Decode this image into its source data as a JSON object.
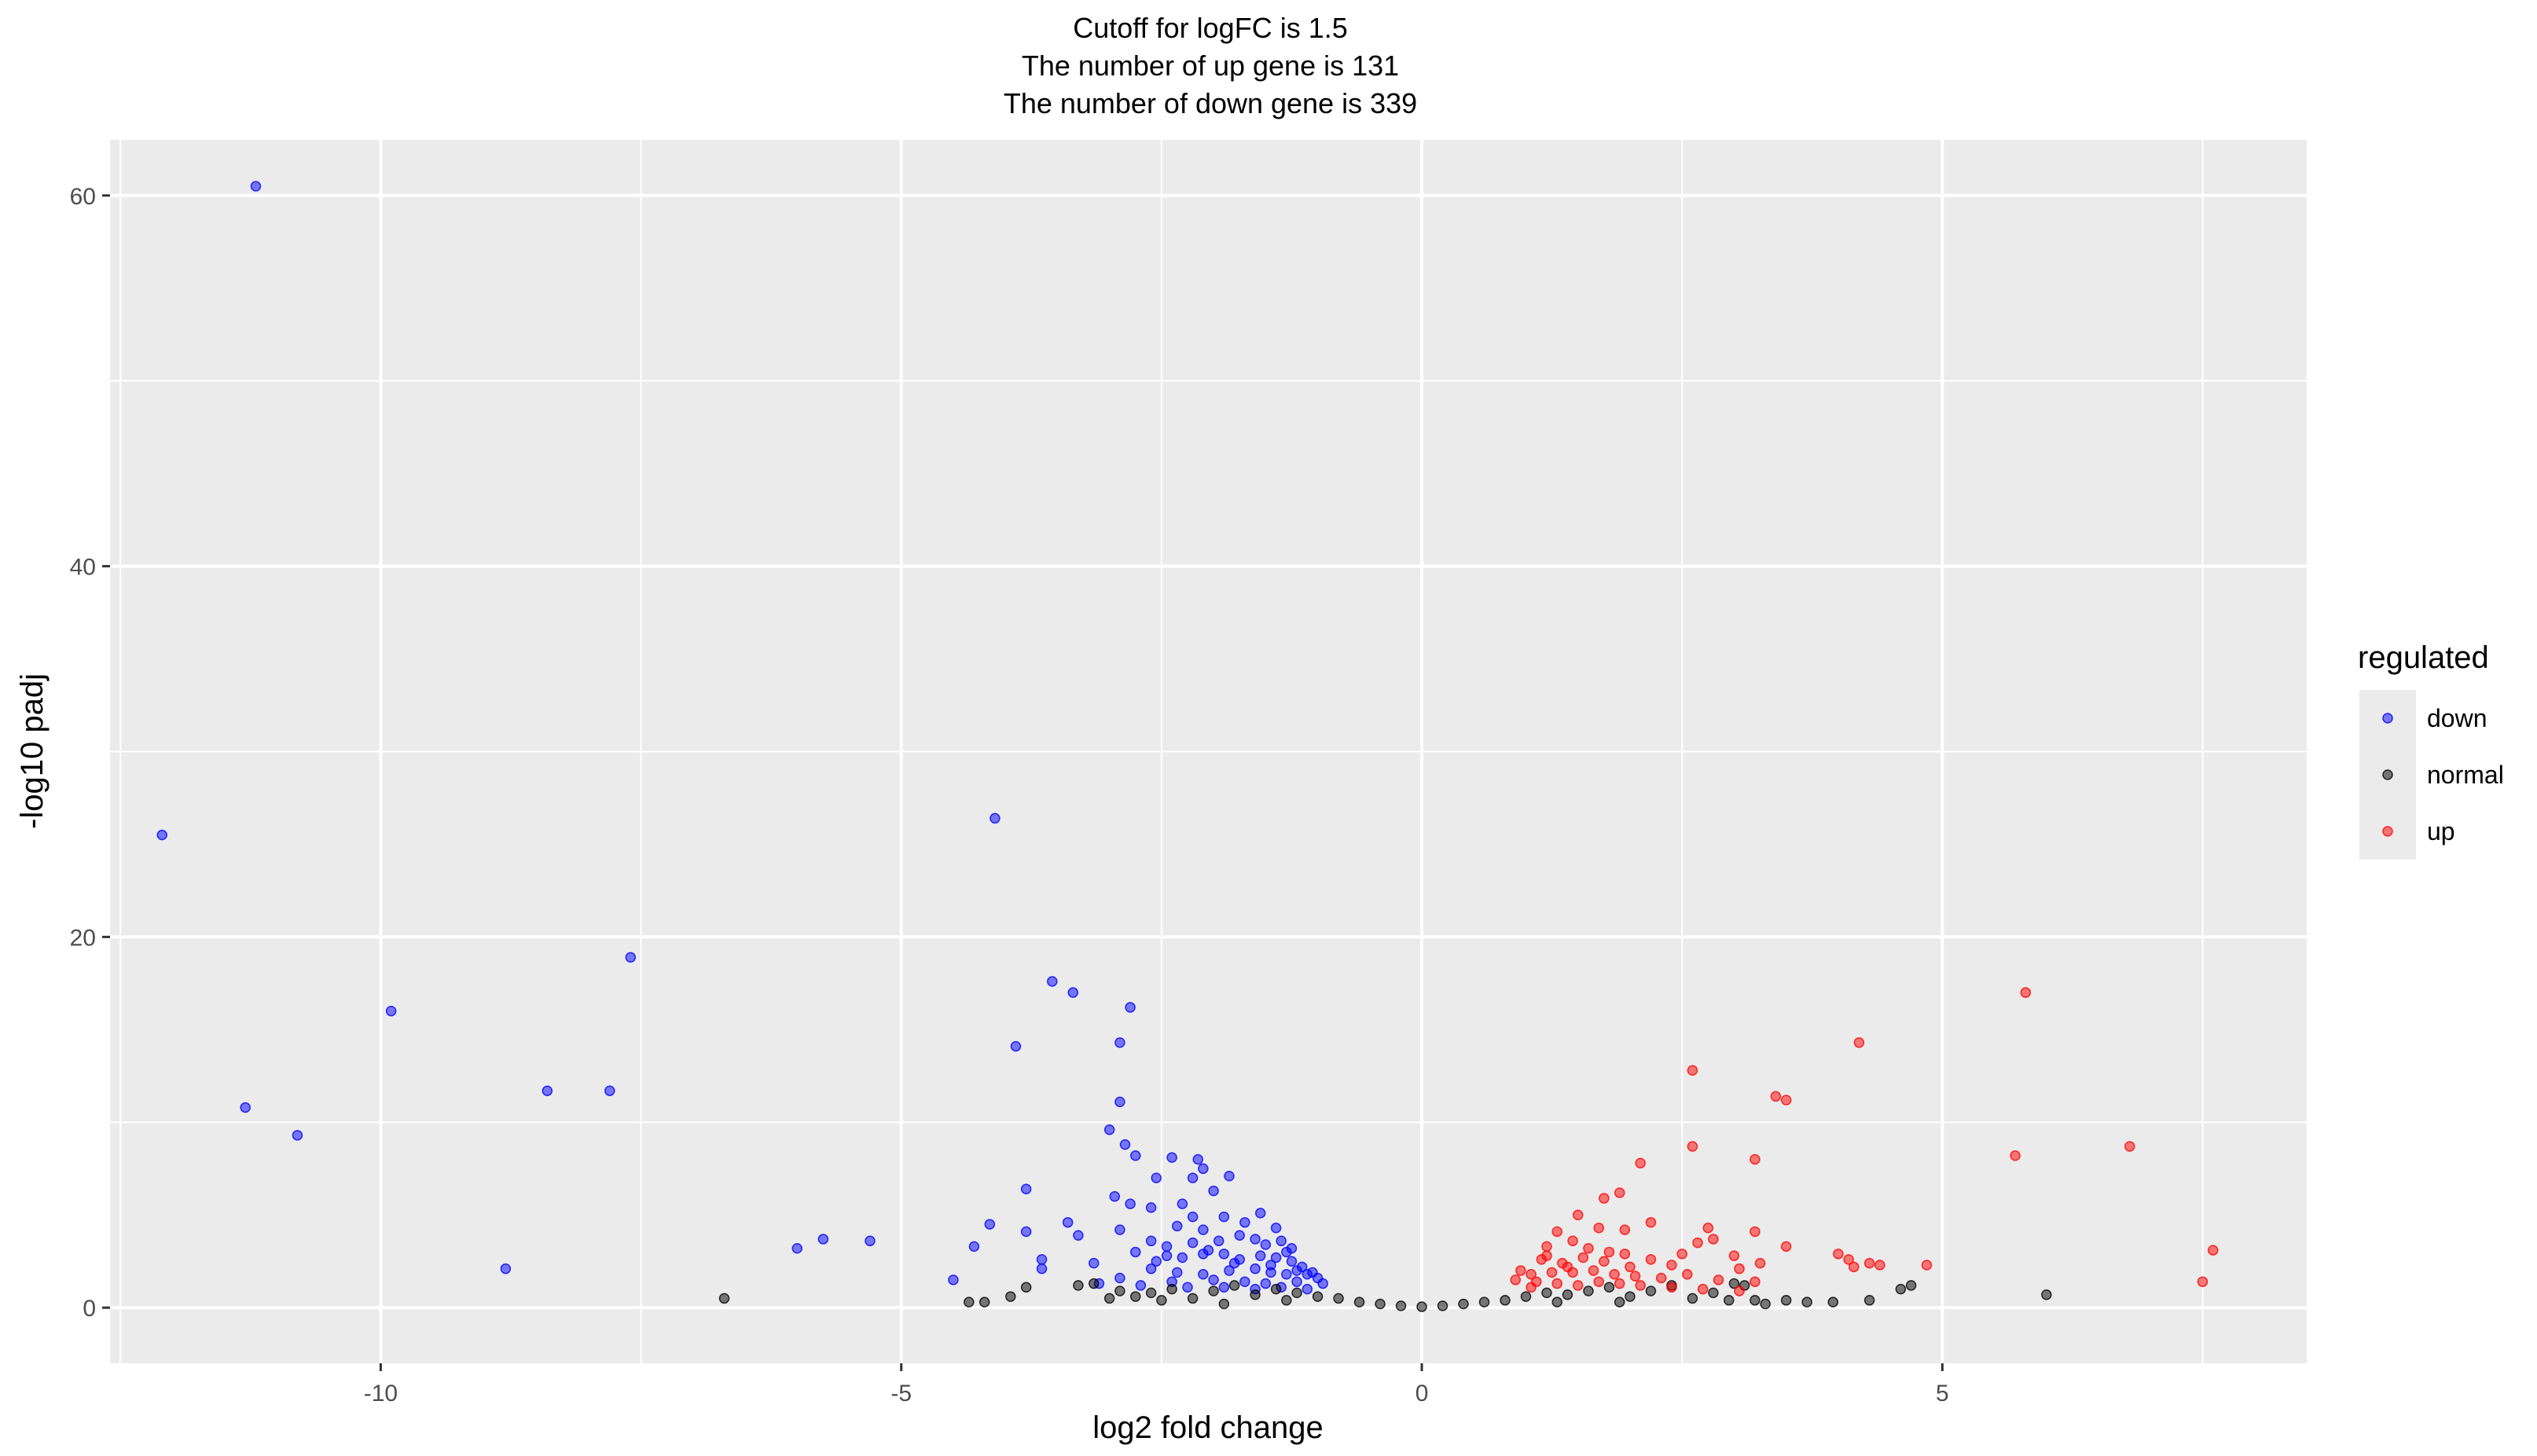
{
  "chart_data": {
    "type": "scatter",
    "title_lines": [
      "Cutoff for logFC is 1.5",
      "The number of up gene is 131",
      "The number of down gene is 339"
    ],
    "xlabel": "log2 fold change",
    "ylabel": "-log10 padj",
    "xlim": [
      -12.6,
      8.5
    ],
    "ylim": [
      -3.0,
      63.0
    ],
    "x_ticks": [
      -10,
      -5,
      0,
      5
    ],
    "x_tick_labels": [
      "-10",
      "-5",
      "0",
      "5"
    ],
    "y_ticks": [
      0,
      20,
      40,
      60
    ],
    "y_tick_labels": [
      "0",
      "20",
      "40",
      "60"
    ],
    "grid": true,
    "legend": {
      "title": "regulated",
      "position": "right",
      "entries": [
        {
          "label": "down",
          "color": "#0000ff"
        },
        {
          "label": "normal",
          "color": "#000000"
        },
        {
          "label": "up",
          "color": "#ff0000"
        }
      ]
    },
    "colors": {
      "down": "#0000ff",
      "normal": "#000000",
      "up": "#ff0000",
      "panel": "#ebebeb",
      "grid": "#ffffff"
    },
    "series": [
      {
        "name": "down",
        "color": "#0000ff",
        "points": [
          [
            -11.2,
            60.5
          ],
          [
            -12.1,
            25.5
          ],
          [
            -4.1,
            26.4
          ],
          [
            -7.6,
            18.9
          ],
          [
            -9.9,
            16.0
          ],
          [
            -3.55,
            17.6
          ],
          [
            -3.35,
            17.0
          ],
          [
            -2.8,
            16.2
          ],
          [
            -3.9,
            14.1
          ],
          [
            -2.9,
            14.3
          ],
          [
            -11.3,
            10.8
          ],
          [
            -10.8,
            9.3
          ],
          [
            -8.4,
            11.7
          ],
          [
            -7.8,
            11.7
          ],
          [
            -2.9,
            11.1
          ],
          [
            -3.0,
            9.6
          ],
          [
            -2.85,
            8.8
          ],
          [
            -2.75,
            8.2
          ],
          [
            -2.4,
            8.1
          ],
          [
            -2.15,
            8.0
          ],
          [
            -2.1,
            7.5
          ],
          [
            -1.85,
            7.1
          ],
          [
            -2.2,
            7.0
          ],
          [
            -2.55,
            7.0
          ],
          [
            -2.0,
            6.3
          ],
          [
            -3.8,
            6.4
          ],
          [
            -2.95,
            6.0
          ],
          [
            -2.8,
            5.6
          ],
          [
            -2.6,
            5.4
          ],
          [
            -2.3,
            5.6
          ],
          [
            -2.2,
            4.9
          ],
          [
            -1.9,
            4.9
          ],
          [
            -1.55,
            5.1
          ],
          [
            -4.15,
            4.5
          ],
          [
            -3.4,
            4.6
          ],
          [
            -2.9,
            4.2
          ],
          [
            -3.3,
            3.9
          ],
          [
            -3.8,
            4.1
          ],
          [
            -2.35,
            4.4
          ],
          [
            -2.1,
            4.2
          ],
          [
            -1.7,
            4.6
          ],
          [
            -1.4,
            4.3
          ],
          [
            -5.3,
            3.6
          ],
          [
            -5.75,
            3.7
          ],
          [
            -6.0,
            3.2
          ],
          [
            -4.3,
            3.3
          ],
          [
            -2.6,
            3.6
          ],
          [
            -2.45,
            3.3
          ],
          [
            -2.2,
            3.5
          ],
          [
            -1.95,
            3.6
          ],
          [
            -1.75,
            3.9
          ],
          [
            -1.6,
            3.7
          ],
          [
            -1.5,
            3.4
          ],
          [
            -1.35,
            3.6
          ],
          [
            -1.25,
            3.2
          ],
          [
            -2.75,
            3.0
          ],
          [
            -3.65,
            2.6
          ],
          [
            -3.15,
            2.4
          ],
          [
            -2.55,
            2.5
          ],
          [
            -2.3,
            2.7
          ],
          [
            -2.1,
            2.9
          ],
          [
            -1.9,
            2.9
          ],
          [
            -1.75,
            2.6
          ],
          [
            -1.55,
            2.8
          ],
          [
            -1.4,
            2.7
          ],
          [
            -1.25,
            2.5
          ],
          [
            -1.15,
            2.2
          ],
          [
            -8.8,
            2.1
          ],
          [
            -3.65,
            2.1
          ],
          [
            -2.6,
            2.1
          ],
          [
            -2.35,
            1.9
          ],
          [
            -2.1,
            1.8
          ],
          [
            -1.85,
            2.0
          ],
          [
            -1.6,
            2.1
          ],
          [
            -1.45,
            1.9
          ],
          [
            -1.3,
            1.8
          ],
          [
            -1.1,
            1.8
          ],
          [
            -1.0,
            1.6
          ],
          [
            -4.5,
            1.5
          ],
          [
            -2.9,
            1.6
          ],
          [
            -2.4,
            1.4
          ],
          [
            -2.0,
            1.5
          ],
          [
            -1.7,
            1.4
          ],
          [
            -1.5,
            1.3
          ],
          [
            -1.2,
            1.4
          ],
          [
            -0.95,
            1.3
          ],
          [
            -2.25,
            1.1
          ],
          [
            -1.9,
            1.1
          ],
          [
            -1.6,
            1.0
          ],
          [
            -1.35,
            1.1
          ],
          [
            -1.1,
            1.0
          ],
          [
            -2.7,
            1.2
          ],
          [
            -3.1,
            1.3
          ],
          [
            -2.05,
            3.1
          ],
          [
            -1.3,
            3.0
          ],
          [
            -1.8,
            2.4
          ],
          [
            -1.45,
            2.3
          ],
          [
            -1.2,
            2.0
          ],
          [
            -1.05,
            1.9
          ],
          [
            -2.45,
            2.8
          ]
        ]
      },
      {
        "name": "normal",
        "color": "#000000",
        "points": [
          [
            -6.7,
            0.5
          ],
          [
            -4.2,
            0.3
          ],
          [
            -4.35,
            0.3
          ],
          [
            -3.95,
            0.6
          ],
          [
            -3.8,
            1.1
          ],
          [
            -3.3,
            1.2
          ],
          [
            -3.15,
            1.3
          ],
          [
            -2.9,
            0.9
          ],
          [
            -2.75,
            0.6
          ],
          [
            -2.6,
            0.8
          ],
          [
            -2.4,
            1.0
          ],
          [
            -2.2,
            0.5
          ],
          [
            -2.0,
            0.9
          ],
          [
            -1.8,
            1.2
          ],
          [
            -1.6,
            0.7
          ],
          [
            -1.4,
            1.0
          ],
          [
            -1.2,
            0.8
          ],
          [
            -1.0,
            0.6
          ],
          [
            -0.8,
            0.5
          ],
          [
            -0.6,
            0.3
          ],
          [
            -0.4,
            0.2
          ],
          [
            -0.2,
            0.1
          ],
          [
            0.0,
            0.05
          ],
          [
            0.2,
            0.1
          ],
          [
            0.4,
            0.2
          ],
          [
            0.6,
            0.3
          ],
          [
            0.8,
            0.4
          ],
          [
            1.0,
            0.6
          ],
          [
            1.2,
            0.8
          ],
          [
            1.4,
            0.7
          ],
          [
            1.6,
            0.9
          ],
          [
            1.8,
            1.1
          ],
          [
            2.0,
            0.6
          ],
          [
            2.2,
            0.9
          ],
          [
            2.4,
            1.2
          ],
          [
            2.6,
            0.5
          ],
          [
            2.8,
            0.8
          ],
          [
            3.0,
            1.3
          ],
          [
            3.2,
            0.4
          ],
          [
            3.3,
            0.2
          ],
          [
            3.5,
            0.4
          ],
          [
            3.7,
            0.3
          ],
          [
            3.95,
            0.3
          ],
          [
            4.3,
            0.4
          ],
          [
            4.6,
            1.0
          ],
          [
            4.7,
            1.2
          ],
          [
            6.0,
            0.7
          ],
          [
            3.1,
            1.2
          ],
          [
            2.95,
            0.4
          ],
          [
            -2.5,
            0.4
          ],
          [
            -3.0,
            0.5
          ],
          [
            -1.9,
            0.2
          ],
          [
            1.9,
            0.3
          ],
          [
            -1.3,
            0.4
          ],
          [
            1.3,
            0.3
          ]
        ]
      },
      {
        "name": "up",
        "color": "#ff0000",
        "points": [
          [
            5.8,
            17.0
          ],
          [
            4.2,
            14.3
          ],
          [
            2.6,
            12.8
          ],
          [
            3.4,
            11.4
          ],
          [
            3.5,
            11.2
          ],
          [
            6.8,
            8.7
          ],
          [
            2.6,
            8.7
          ],
          [
            5.7,
            8.2
          ],
          [
            3.2,
            8.0
          ],
          [
            2.1,
            7.8
          ],
          [
            1.9,
            6.2
          ],
          [
            1.75,
            5.9
          ],
          [
            1.5,
            5.0
          ],
          [
            2.2,
            4.6
          ],
          [
            2.75,
            4.3
          ],
          [
            3.2,
            4.1
          ],
          [
            1.7,
            4.3
          ],
          [
            1.95,
            4.2
          ],
          [
            1.3,
            4.1
          ],
          [
            2.8,
            3.7
          ],
          [
            2.65,
            3.5
          ],
          [
            1.45,
            3.6
          ],
          [
            1.2,
            3.3
          ],
          [
            3.5,
            3.3
          ],
          [
            7.6,
            3.1
          ],
          [
            2.5,
            2.9
          ],
          [
            3.0,
            2.8
          ],
          [
            3.25,
            2.4
          ],
          [
            4.0,
            2.9
          ],
          [
            4.1,
            2.6
          ],
          [
            4.3,
            2.4
          ],
          [
            4.4,
            2.3
          ],
          [
            4.85,
            2.3
          ],
          [
            4.15,
            2.2
          ],
          [
            1.15,
            2.6
          ],
          [
            1.35,
            2.4
          ],
          [
            1.55,
            2.7
          ],
          [
            1.75,
            2.5
          ],
          [
            1.95,
            2.9
          ],
          [
            2.2,
            2.6
          ],
          [
            2.4,
            2.3
          ],
          [
            3.05,
            2.1
          ],
          [
            0.95,
            2.0
          ],
          [
            1.05,
            1.8
          ],
          [
            1.25,
            1.9
          ],
          [
            1.45,
            1.9
          ],
          [
            1.65,
            2.0
          ],
          [
            1.85,
            1.8
          ],
          [
            2.05,
            1.7
          ],
          [
            2.3,
            1.6
          ],
          [
            2.55,
            1.8
          ],
          [
            2.85,
            1.5
          ],
          [
            3.2,
            1.4
          ],
          [
            7.5,
            1.4
          ],
          [
            0.9,
            1.5
          ],
          [
            1.1,
            1.4
          ],
          [
            1.3,
            1.3
          ],
          [
            1.5,
            1.2
          ],
          [
            1.7,
            1.4
          ],
          [
            1.9,
            1.3
          ],
          [
            2.1,
            1.2
          ],
          [
            2.4,
            1.1
          ],
          [
            2.7,
            1.0
          ],
          [
            3.05,
            0.9
          ],
          [
            1.05,
            1.1
          ],
          [
            1.6,
            3.2
          ],
          [
            1.8,
            3.0
          ],
          [
            1.4,
            2.2
          ],
          [
            2.0,
            2.2
          ],
          [
            1.2,
            2.8
          ]
        ]
      }
    ]
  }
}
